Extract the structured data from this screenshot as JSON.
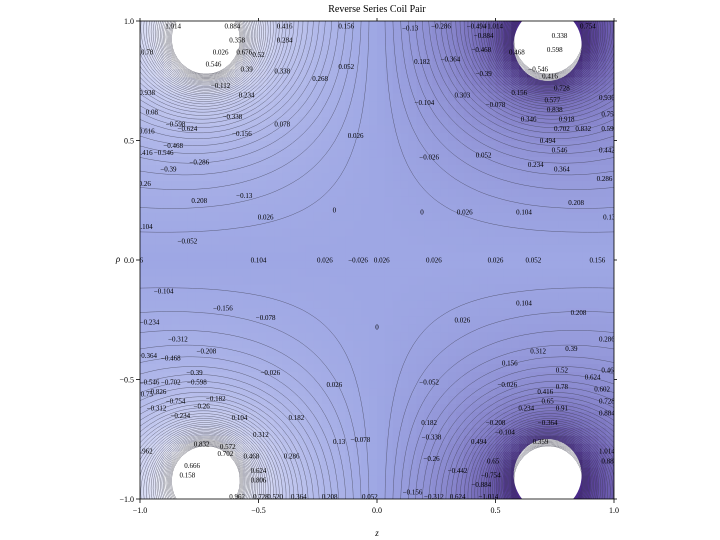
{
  "chart_data": {
    "type": "contour",
    "title": "Reverse Series Coil Pair",
    "xlabel": "z",
    "ylabel": "ρ",
    "xlim": [
      -1.0,
      1.0
    ],
    "ylim": [
      -1.0,
      1.0
    ],
    "x_ticks": [
      -1.0,
      -0.5,
      0.0,
      0.5,
      1.0
    ],
    "x_tick_labels": [
      "−1.0",
      "−0.5",
      "0.0",
      "0.5",
      "1.0"
    ],
    "y_ticks": [
      -1.0,
      -0.5,
      0.0,
      0.5,
      1.0
    ],
    "y_tick_labels": [
      "−1.0",
      "−0.5",
      "0.0",
      "0.5",
      "1.0"
    ],
    "colors": {
      "positive_high": "#ffffff",
      "mid": "#9ea7e4",
      "negative_high": "#4a2a8a"
    },
    "sources": [
      {
        "z": -0.72,
        "rho": 0.9
      },
      {
        "z": 0.72,
        "rho": 0.9
      },
      {
        "z": -0.72,
        "rho": -0.9
      },
      {
        "z": 0.72,
        "rho": -0.9
      }
    ],
    "contour_labels": [
      {
        "x": -0.86,
        "y": 0.98,
        "text": "1.014"
      },
      {
        "x": -0.61,
        "y": 0.98,
        "text": "0.884"
      },
      {
        "x": -0.39,
        "y": 0.98,
        "text": "0.416"
      },
      {
        "x": -0.13,
        "y": 0.98,
        "text": "0.156"
      },
      {
        "x": 0.14,
        "y": 0.97,
        "text": "−0.13"
      },
      {
        "x": 0.27,
        "y": 0.98,
        "text": "−0.286"
      },
      {
        "x": 0.42,
        "y": 0.98,
        "text": "−0.494"
      },
      {
        "x": 0.49,
        "y": 0.98,
        "text": "−1.014"
      },
      {
        "x": 0.89,
        "y": 0.98,
        "text": "0.754"
      },
      {
        "x": -0.59,
        "y": 0.92,
        "text": "0.358"
      },
      {
        "x": -0.39,
        "y": 0.92,
        "text": "0.284"
      },
      {
        "x": 0.45,
        "y": 0.94,
        "text": "−0.884"
      },
      {
        "x": 0.77,
        "y": 0.94,
        "text": "0.338"
      },
      {
        "x": -0.97,
        "y": 0.87,
        "text": "0.78"
      },
      {
        "x": -0.66,
        "y": 0.87,
        "text": "0.026"
      },
      {
        "x": -0.56,
        "y": 0.87,
        "text": "0.676"
      },
      {
        "x": -0.5,
        "y": 0.86,
        "text": "0.52"
      },
      {
        "x": 0.19,
        "y": 0.83,
        "text": "0.182"
      },
      {
        "x": 0.31,
        "y": 0.84,
        "text": "−0.364"
      },
      {
        "x": 0.44,
        "y": 0.88,
        "text": "−0.468"
      },
      {
        "x": 0.59,
        "y": 0.87,
        "text": "0.468"
      },
      {
        "x": 0.75,
        "y": 0.88,
        "text": "0.598"
      },
      {
        "x": -0.69,
        "y": 0.82,
        "text": "0.546"
      },
      {
        "x": -0.55,
        "y": 0.8,
        "text": "0.39"
      },
      {
        "x": -0.4,
        "y": 0.79,
        "text": "0.338"
      },
      {
        "x": -0.13,
        "y": 0.81,
        "text": "0.052"
      },
      {
        "x": -0.24,
        "y": 0.76,
        "text": "0.268"
      },
      {
        "x": 0.45,
        "y": 0.78,
        "text": "−0.39"
      },
      {
        "x": 0.68,
        "y": 0.8,
        "text": "−0.546"
      },
      {
        "x": 0.73,
        "y": 0.77,
        "text": "0.416"
      },
      {
        "x": -0.66,
        "y": 0.73,
        "text": "−0.112"
      },
      {
        "x": 0.36,
        "y": 0.69,
        "text": "0.303"
      },
      {
        "x": 0.6,
        "y": 0.7,
        "text": "0.156"
      },
      {
        "x": 0.78,
        "y": 0.72,
        "text": "0.728"
      },
      {
        "x": -0.97,
        "y": 0.7,
        "text": "0.938"
      },
      {
        "x": -0.55,
        "y": 0.69,
        "text": "0.234"
      },
      {
        "x": 0.74,
        "y": 0.67,
        "text": "0.577"
      },
      {
        "x": 0.97,
        "y": 0.68,
        "text": "0.936"
      },
      {
        "x": 0.2,
        "y": 0.66,
        "text": "−0.104"
      },
      {
        "x": 0.5,
        "y": 0.65,
        "text": "−0.078"
      },
      {
        "x": 0.75,
        "y": 0.63,
        "text": "0.838"
      },
      {
        "x": -0.95,
        "y": 0.62,
        "text": "0.08"
      },
      {
        "x": -0.85,
        "y": 0.57,
        "text": "−0.598"
      },
      {
        "x": -0.61,
        "y": 0.6,
        "text": "−0.338"
      },
      {
        "x": -0.4,
        "y": 0.57,
        "text": "0.078"
      },
      {
        "x": 0.64,
        "y": 0.59,
        "text": "0.346"
      },
      {
        "x": 0.8,
        "y": 0.59,
        "text": "0.918"
      },
      {
        "x": 0.98,
        "y": 0.61,
        "text": "0.754"
      },
      {
        "x": -0.98,
        "y": 0.54,
        "text": "−0.616"
      },
      {
        "x": -0.8,
        "y": 0.55,
        "text": "−0.624"
      },
      {
        "x": -0.57,
        "y": 0.53,
        "text": "−0.156"
      },
      {
        "x": 0.78,
        "y": 0.55,
        "text": "0.702"
      },
      {
        "x": 0.87,
        "y": 0.55,
        "text": "0.832"
      },
      {
        "x": 0.98,
        "y": 0.55,
        "text": "0.599"
      },
      {
        "x": -0.86,
        "y": 0.48,
        "text": "−0.468"
      },
      {
        "x": -0.09,
        "y": 0.52,
        "text": "0.026"
      },
      {
        "x": 0.72,
        "y": 0.5,
        "text": "0.494"
      },
      {
        "x": -0.98,
        "y": 0.45,
        "text": "0.416"
      },
      {
        "x": -0.9,
        "y": 0.45,
        "text": "−0.546"
      },
      {
        "x": 0.77,
        "y": 0.46,
        "text": "0.546"
      },
      {
        "x": 0.97,
        "y": 0.46,
        "text": "0.442"
      },
      {
        "x": -0.75,
        "y": 0.41,
        "text": "−0.286"
      },
      {
        "x": 0.22,
        "y": 0.43,
        "text": "−0.026"
      },
      {
        "x": 0.45,
        "y": 0.44,
        "text": "0.052"
      },
      {
        "x": 0.67,
        "y": 0.4,
        "text": "0.234"
      },
      {
        "x": -0.88,
        "y": 0.38,
        "text": "−0.39"
      },
      {
        "x": 0.78,
        "y": 0.38,
        "text": "0.364"
      },
      {
        "x": -0.98,
        "y": 0.32,
        "text": "0.26"
      },
      {
        "x": 0.96,
        "y": 0.34,
        "text": "0.286"
      },
      {
        "x": -0.56,
        "y": 0.27,
        "text": "−0.13"
      },
      {
        "x": -0.75,
        "y": 0.25,
        "text": "0.208"
      },
      {
        "x": 0.84,
        "y": 0.24,
        "text": "0.208"
      },
      {
        "x": -0.18,
        "y": 0.21,
        "text": "0"
      },
      {
        "x": 0.19,
        "y": 0.2,
        "text": "0"
      },
      {
        "x": 0.37,
        "y": 0.2,
        "text": "0.026"
      },
      {
        "x": 0.62,
        "y": 0.2,
        "text": "0.104"
      },
      {
        "x": 0.98,
        "y": 0.18,
        "text": "0.13"
      },
      {
        "x": -0.47,
        "y": 0.18,
        "text": "0.026"
      },
      {
        "x": -0.98,
        "y": 0.14,
        "text": "0.104"
      },
      {
        "x": -0.8,
        "y": 0.08,
        "text": "−0.052"
      },
      {
        "x": -1.02,
        "y": 0.0,
        "text": "0.026"
      },
      {
        "x": -0.5,
        "y": 0.0,
        "text": "0.104"
      },
      {
        "x": -0.22,
        "y": 0.0,
        "text": "0.026"
      },
      {
        "x": -0.08,
        "y": 0.0,
        "text": "−0.026"
      },
      {
        "x": 0.02,
        "y": 0.0,
        "text": "0.026"
      },
      {
        "x": 0.24,
        "y": 0.0,
        "text": "0.026"
      },
      {
        "x": 0.5,
        "y": 0.0,
        "text": "0.026"
      },
      {
        "x": 0.66,
        "y": 0.0,
        "text": "0.052"
      },
      {
        "x": 0.93,
        "y": 0.0,
        "text": "0.156"
      },
      {
        "x": -0.9,
        "y": -0.13,
        "text": "−0.104"
      },
      {
        "x": -0.65,
        "y": -0.2,
        "text": "−0.156"
      },
      {
        "x": -0.47,
        "y": -0.24,
        "text": "−0.078"
      },
      {
        "x": 0.62,
        "y": -0.18,
        "text": "0.104"
      },
      {
        "x": 0.85,
        "y": -0.22,
        "text": "0.208"
      },
      {
        "x": -0.96,
        "y": -0.26,
        "text": "−0.234"
      },
      {
        "x": 0.36,
        "y": -0.25,
        "text": "0.026"
      },
      {
        "x": 0.0,
        "y": -0.28,
        "text": "0"
      },
      {
        "x": -0.84,
        "y": -0.33,
        "text": "−0.312"
      },
      {
        "x": 0.97,
        "y": -0.33,
        "text": "0.286"
      },
      {
        "x": -0.72,
        "y": -0.38,
        "text": "−0.208"
      },
      {
        "x": -0.97,
        "y": -0.4,
        "text": "−0.364"
      },
      {
        "x": -0.87,
        "y": -0.41,
        "text": "−0.468"
      },
      {
        "x": 0.68,
        "y": -0.38,
        "text": "0.312"
      },
      {
        "x": 0.82,
        "y": -0.37,
        "text": "0.39"
      },
      {
        "x": -0.77,
        "y": -0.47,
        "text": "−0.39"
      },
      {
        "x": -0.45,
        "y": -0.47,
        "text": "−0.026"
      },
      {
        "x": 0.56,
        "y": -0.43,
        "text": "0.156"
      },
      {
        "x": 0.78,
        "y": -0.46,
        "text": "0.52"
      },
      {
        "x": 0.98,
        "y": -0.46,
        "text": "0.463"
      },
      {
        "x": -0.96,
        "y": -0.51,
        "text": "−0.546"
      },
      {
        "x": -0.87,
        "y": -0.51,
        "text": "−0.702"
      },
      {
        "x": -0.76,
        "y": -0.51,
        "text": "−0.598"
      },
      {
        "x": 0.91,
        "y": -0.49,
        "text": "0.624"
      },
      {
        "x": -0.98,
        "y": -0.56,
        "text": "−0.75"
      },
      {
        "x": -0.93,
        "y": -0.55,
        "text": "−0.826"
      },
      {
        "x": -0.18,
        "y": -0.52,
        "text": "0.026"
      },
      {
        "x": 0.22,
        "y": -0.51,
        "text": "−0.052"
      },
      {
        "x": 0.55,
        "y": -0.52,
        "text": "−0.026"
      },
      {
        "x": 0.71,
        "y": -0.55,
        "text": "0.416"
      },
      {
        "x": 0.78,
        "y": -0.53,
        "text": "0.78"
      },
      {
        "x": 0.95,
        "y": -0.54,
        "text": "0.602"
      },
      {
        "x": -0.85,
        "y": -0.59,
        "text": "−0.754"
      },
      {
        "x": -0.68,
        "y": -0.58,
        "text": "−0.182"
      },
      {
        "x": 0.72,
        "y": -0.59,
        "text": "0.65"
      },
      {
        "x": 0.97,
        "y": -0.59,
        "text": "0.728"
      },
      {
        "x": -0.93,
        "y": -0.62,
        "text": "−0.312"
      },
      {
        "x": -0.74,
        "y": -0.61,
        "text": "−0.26"
      },
      {
        "x": 0.63,
        "y": -0.62,
        "text": "0.234"
      },
      {
        "x": 0.78,
        "y": -0.62,
        "text": "0.91"
      },
      {
        "x": 0.97,
        "y": -0.64,
        "text": "0.884"
      },
      {
        "x": -0.83,
        "y": -0.65,
        "text": "−0.234"
      },
      {
        "x": -0.58,
        "y": -0.66,
        "text": "0.104"
      },
      {
        "x": -0.34,
        "y": -0.66,
        "text": "0.182"
      },
      {
        "x": 0.22,
        "y": -0.68,
        "text": "0.182"
      },
      {
        "x": 0.5,
        "y": -0.68,
        "text": "−0.208"
      },
      {
        "x": 0.72,
        "y": -0.68,
        "text": "−0.364"
      },
      {
        "x": -0.49,
        "y": -0.73,
        "text": "0.312"
      },
      {
        "x": -0.07,
        "y": -0.75,
        "text": "−0.078"
      },
      {
        "x": 0.23,
        "y": -0.74,
        "text": "−0.338"
      },
      {
        "x": 0.54,
        "y": -0.72,
        "text": "−0.104"
      },
      {
        "x": 0.69,
        "y": -0.76,
        "text": "0.359"
      },
      {
        "x": -0.74,
        "y": -0.77,
        "text": "0.832"
      },
      {
        "x": -0.63,
        "y": -0.78,
        "text": "0.572"
      },
      {
        "x": -0.16,
        "y": -0.76,
        "text": "0.13"
      },
      {
        "x": 0.43,
        "y": -0.76,
        "text": "0.494"
      },
      {
        "x": 0.97,
        "y": -0.8,
        "text": "1.014"
      },
      {
        "x": -0.98,
        "y": -0.8,
        "text": "0.962"
      },
      {
        "x": -0.64,
        "y": -0.81,
        "text": "0.702"
      },
      {
        "x": -0.53,
        "y": -0.82,
        "text": "0.468"
      },
      {
        "x": -0.36,
        "y": -0.82,
        "text": "0.286"
      },
      {
        "x": 0.23,
        "y": -0.83,
        "text": "−0.26"
      },
      {
        "x": 0.49,
        "y": -0.84,
        "text": "0.65"
      },
      {
        "x": 0.98,
        "y": -0.84,
        "text": "0.884"
      },
      {
        "x": -0.78,
        "y": -0.86,
        "text": "0.666"
      },
      {
        "x": -0.5,
        "y": -0.88,
        "text": "0.624"
      },
      {
        "x": 0.34,
        "y": -0.88,
        "text": "−0.442"
      },
      {
        "x": 0.48,
        "y": -0.9,
        "text": "−0.754"
      },
      {
        "x": -0.8,
        "y": -0.9,
        "text": "0.158"
      },
      {
        "x": -0.5,
        "y": -0.92,
        "text": "0.806"
      },
      {
        "x": 0.44,
        "y": -0.94,
        "text": "−0.884"
      },
      {
        "x": -0.59,
        "y": -0.99,
        "text": "0.962"
      },
      {
        "x": -0.49,
        "y": -0.99,
        "text": "0.728"
      },
      {
        "x": -0.43,
        "y": -0.99,
        "text": "0.520"
      },
      {
        "x": -0.33,
        "y": -0.99,
        "text": "0.364"
      },
      {
        "x": -0.2,
        "y": -0.99,
        "text": "0.208"
      },
      {
        "x": -0.03,
        "y": -0.99,
        "text": "0.052"
      },
      {
        "x": 0.15,
        "y": -0.97,
        "text": "−0.156"
      },
      {
        "x": 0.24,
        "y": -0.99,
        "text": "−0.312"
      },
      {
        "x": 0.34,
        "y": -0.99,
        "text": "0.624"
      },
      {
        "x": 0.47,
        "y": -0.99,
        "text": "−1.014"
      }
    ]
  }
}
